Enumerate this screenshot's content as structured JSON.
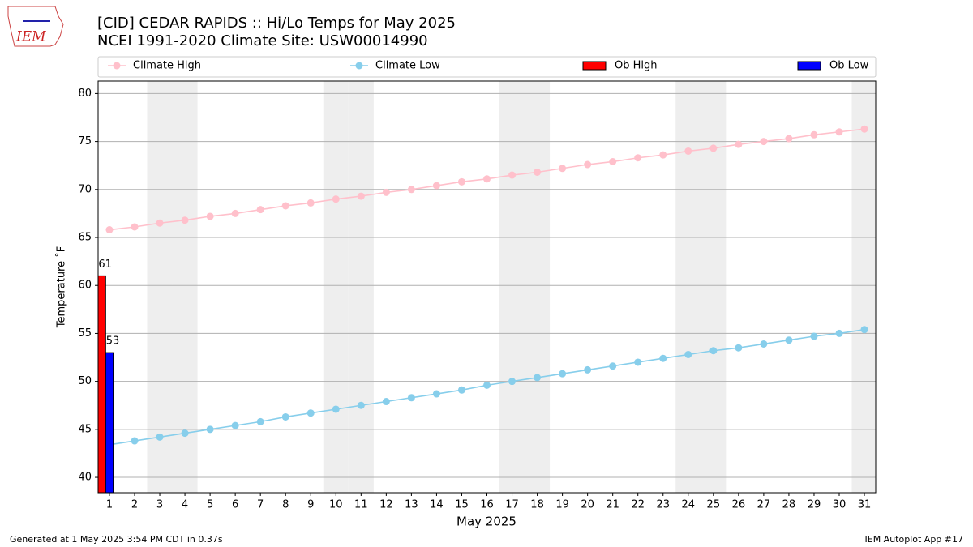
{
  "logo_text": "IEM",
  "footer_left": "Generated at 1 May 2025 3:54 PM CDT in 0.37s",
  "footer_right": "IEM Autoplot App #17",
  "chart_data": {
    "type": "line",
    "title": "[CID] CEDAR RAPIDS :: Hi/Lo Temps for May 2025",
    "subtitle": "NCEI 1991-2020 Climate Site: USW00014990",
    "x_label": "May 2025",
    "y_label": "Temperature ˚F",
    "x": [
      1,
      2,
      3,
      4,
      5,
      6,
      7,
      8,
      9,
      10,
      11,
      12,
      13,
      14,
      15,
      16,
      17,
      18,
      19,
      20,
      21,
      22,
      23,
      24,
      25,
      26,
      27,
      28,
      29,
      30,
      31
    ],
    "weekend_days": [
      3,
      4,
      10,
      11,
      17,
      18,
      24,
      25,
      31
    ],
    "series": [
      {
        "name": "Climate High",
        "type": "line",
        "color": "#ffc0cb",
        "values": [
          65.8,
          66.1,
          66.5,
          66.8,
          67.2,
          67.5,
          67.9,
          68.3,
          68.6,
          69.0,
          69.3,
          69.7,
          70.0,
          70.4,
          70.8,
          71.1,
          71.5,
          71.8,
          72.2,
          72.6,
          72.9,
          73.3,
          73.6,
          74.0,
          74.3,
          74.7,
          75.0,
          75.3,
          75.7,
          76.0,
          76.3
        ]
      },
      {
        "name": "Climate Low",
        "type": "line",
        "color": "#87ceeb",
        "values": [
          43.4,
          43.8,
          44.2,
          44.6,
          45.0,
          45.4,
          45.8,
          46.3,
          46.7,
          47.1,
          47.5,
          47.9,
          48.3,
          48.7,
          49.1,
          49.6,
          50.0,
          50.4,
          50.8,
          51.2,
          51.6,
          52.0,
          52.4,
          52.8,
          53.2,
          53.5,
          53.9,
          54.3,
          54.7,
          55.0,
          55.4
        ]
      },
      {
        "name": "Ob High",
        "type": "bar",
        "color": "#ff0000",
        "values": [
          61,
          null,
          null,
          null,
          null,
          null,
          null,
          null,
          null,
          null,
          null,
          null,
          null,
          null,
          null,
          null,
          null,
          null,
          null,
          null,
          null,
          null,
          null,
          null,
          null,
          null,
          null,
          null,
          null,
          null,
          null
        ]
      },
      {
        "name": "Ob Low",
        "type": "bar",
        "color": "#0000ff",
        "values": [
          53,
          null,
          null,
          null,
          null,
          null,
          null,
          null,
          null,
          null,
          null,
          null,
          null,
          null,
          null,
          null,
          null,
          null,
          null,
          null,
          null,
          null,
          null,
          null,
          null,
          null,
          null,
          null,
          null,
          null,
          null
        ]
      }
    ],
    "xlim": [
      0.55,
      31.45
    ],
    "ylim": [
      38.4,
      81.3
    ],
    "xticks": [
      1,
      2,
      3,
      4,
      5,
      6,
      7,
      8,
      9,
      10,
      11,
      12,
      13,
      14,
      15,
      16,
      17,
      18,
      19,
      20,
      21,
      22,
      23,
      24,
      25,
      26,
      27,
      28,
      29,
      30,
      31
    ],
    "yticks": [
      40,
      45,
      50,
      55,
      60,
      65,
      70,
      75,
      80
    ],
    "grid": true,
    "legend": "top"
  }
}
